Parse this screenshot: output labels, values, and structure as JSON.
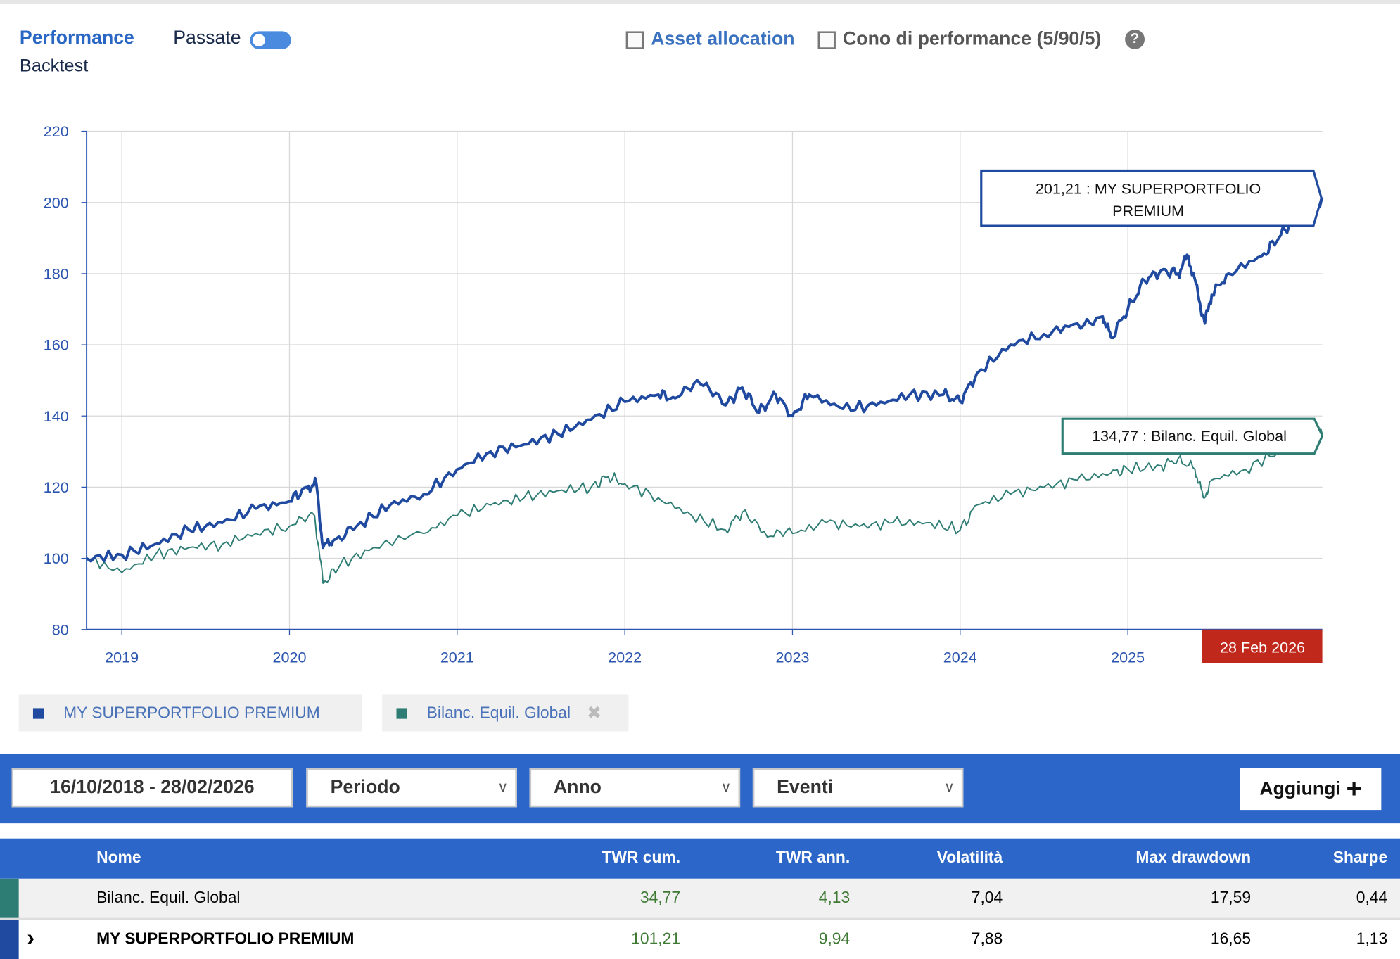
{
  "header": {
    "performance_label": "Performance",
    "backtest_label": "Backtest",
    "passate_label": "Passate",
    "passate_toggle_on": true,
    "asset_allocation_label": "Asset allocation",
    "cono_label": "Cono di performance (5/90/5)",
    "help_icon": "?"
  },
  "colors": {
    "portfolio": "#1f4aa0",
    "benchmark": "#2e7d74",
    "accent": "#2c66c8",
    "date_badge": "#c0281c"
  },
  "chart_data": {
    "type": "line",
    "ylim": [
      80,
      220
    ],
    "yticks": [
      "80",
      "100",
      "120",
      "140",
      "160",
      "180",
      "200",
      "220"
    ],
    "xlim": [
      2018.79,
      2026.16
    ],
    "xticks": [
      "2019",
      "2020",
      "2021",
      "2022",
      "2023",
      "2024",
      "2025"
    ],
    "grid": true,
    "end_date_label": "28 Feb 2026",
    "series": [
      {
        "name": "MY SUPERPORTFOLIO PREMIUM",
        "last_label": "201,21 : MY SUPERPORTFOLIO PREMIUM",
        "points": [
          [
            2018.79,
            100
          ],
          [
            2019.0,
            101
          ],
          [
            2019.2,
            104
          ],
          [
            2019.4,
            108
          ],
          [
            2019.6,
            110
          ],
          [
            2019.8,
            114
          ],
          [
            2020.0,
            116
          ],
          [
            2020.1,
            120
          ],
          [
            2020.16,
            121
          ],
          [
            2020.2,
            103
          ],
          [
            2020.26,
            105
          ],
          [
            2020.4,
            109
          ],
          [
            2020.6,
            115
          ],
          [
            2020.8,
            118
          ],
          [
            2021.0,
            125
          ],
          [
            2021.2,
            130
          ],
          [
            2021.4,
            132
          ],
          [
            2021.6,
            135
          ],
          [
            2021.8,
            139
          ],
          [
            2022.0,
            144
          ],
          [
            2022.2,
            146
          ],
          [
            2022.3,
            145
          ],
          [
            2022.45,
            149
          ],
          [
            2022.6,
            143
          ],
          [
            2022.7,
            148
          ],
          [
            2022.8,
            141
          ],
          [
            2022.9,
            146
          ],
          [
            2023.0,
            140
          ],
          [
            2023.1,
            146
          ],
          [
            2023.3,
            142
          ],
          [
            2023.5,
            143
          ],
          [
            2023.7,
            146
          ],
          [
            2023.9,
            146
          ],
          [
            2024.0,
            144
          ],
          [
            2024.1,
            152
          ],
          [
            2024.3,
            160
          ],
          [
            2024.5,
            163
          ],
          [
            2024.7,
            166
          ],
          [
            2024.85,
            168
          ],
          [
            2024.9,
            162
          ],
          [
            2025.0,
            170
          ],
          [
            2025.1,
            178
          ],
          [
            2025.2,
            181
          ],
          [
            2025.3,
            180
          ],
          [
            2025.36,
            185
          ],
          [
            2025.42,
            174
          ],
          [
            2025.46,
            166
          ],
          [
            2025.5,
            174
          ],
          [
            2025.6,
            180
          ],
          [
            2025.8,
            185
          ],
          [
            2025.9,
            190
          ],
          [
            2026.0,
            196
          ],
          [
            2026.1,
            197
          ],
          [
            2026.16,
            201.21
          ]
        ]
      },
      {
        "name": "Bilanc. Equil. Global",
        "last_label": "134,77 : Bilanc. Equil. Global",
        "points": [
          [
            2018.79,
            100
          ],
          [
            2019.0,
            96
          ],
          [
            2019.2,
            101
          ],
          [
            2019.4,
            103
          ],
          [
            2019.6,
            104
          ],
          [
            2019.8,
            107
          ],
          [
            2020.0,
            109
          ],
          [
            2020.15,
            112
          ],
          [
            2020.2,
            93
          ],
          [
            2020.3,
            98
          ],
          [
            2020.5,
            103
          ],
          [
            2020.8,
            107
          ],
          [
            2021.0,
            112
          ],
          [
            2021.2,
            115
          ],
          [
            2021.4,
            117
          ],
          [
            2021.6,
            119
          ],
          [
            2021.8,
            120
          ],
          [
            2021.9,
            123
          ],
          [
            2022.0,
            121
          ],
          [
            2022.2,
            117
          ],
          [
            2022.4,
            112
          ],
          [
            2022.6,
            108
          ],
          [
            2022.7,
            113
          ],
          [
            2022.85,
            106
          ],
          [
            2023.0,
            107
          ],
          [
            2023.2,
            110
          ],
          [
            2023.4,
            109
          ],
          [
            2023.6,
            110
          ],
          [
            2023.8,
            110
          ],
          [
            2024.0,
            108
          ],
          [
            2024.1,
            115
          ],
          [
            2024.3,
            118
          ],
          [
            2024.5,
            120
          ],
          [
            2024.7,
            122
          ],
          [
            2024.9,
            124
          ],
          [
            2025.0,
            125
          ],
          [
            2025.2,
            126
          ],
          [
            2025.3,
            128
          ],
          [
            2025.4,
            125
          ],
          [
            2025.45,
            117
          ],
          [
            2025.5,
            122
          ],
          [
            2025.7,
            125
          ],
          [
            2025.9,
            130
          ],
          [
            2026.1,
            132
          ],
          [
            2026.16,
            134.77
          ]
        ]
      }
    ]
  },
  "legend": {
    "items": [
      {
        "label": "MY SUPERPORTFOLIO PREMIUM"
      },
      {
        "label": "Bilanc. Equil. Global",
        "remove_icon": "✖"
      }
    ]
  },
  "toolbar": {
    "date_range": "16/10/2018 - 28/02/2026",
    "periodo": "Periodo",
    "anno": "Anno",
    "eventi": "Eventi",
    "add_label": "Aggiungi",
    "add_icon": "+"
  },
  "table": {
    "columns": [
      "Nome",
      "TWR cum.",
      "TWR ann.",
      "Volatilità",
      "Max drawdown",
      "Sharpe"
    ],
    "rows": [
      {
        "name": "Bilanc. Equil. Global",
        "twr_cum": "34,77",
        "twr_ann": "4,13",
        "vol": "7,04",
        "mdd": "17,59",
        "sharpe": "0,44"
      },
      {
        "name": "MY SUPERPORTFOLIO PREMIUM",
        "twr_cum": "101,21",
        "twr_ann": "9,94",
        "vol": "7,88",
        "mdd": "16,65",
        "sharpe": "1,13",
        "expand_icon": "›"
      }
    ]
  }
}
